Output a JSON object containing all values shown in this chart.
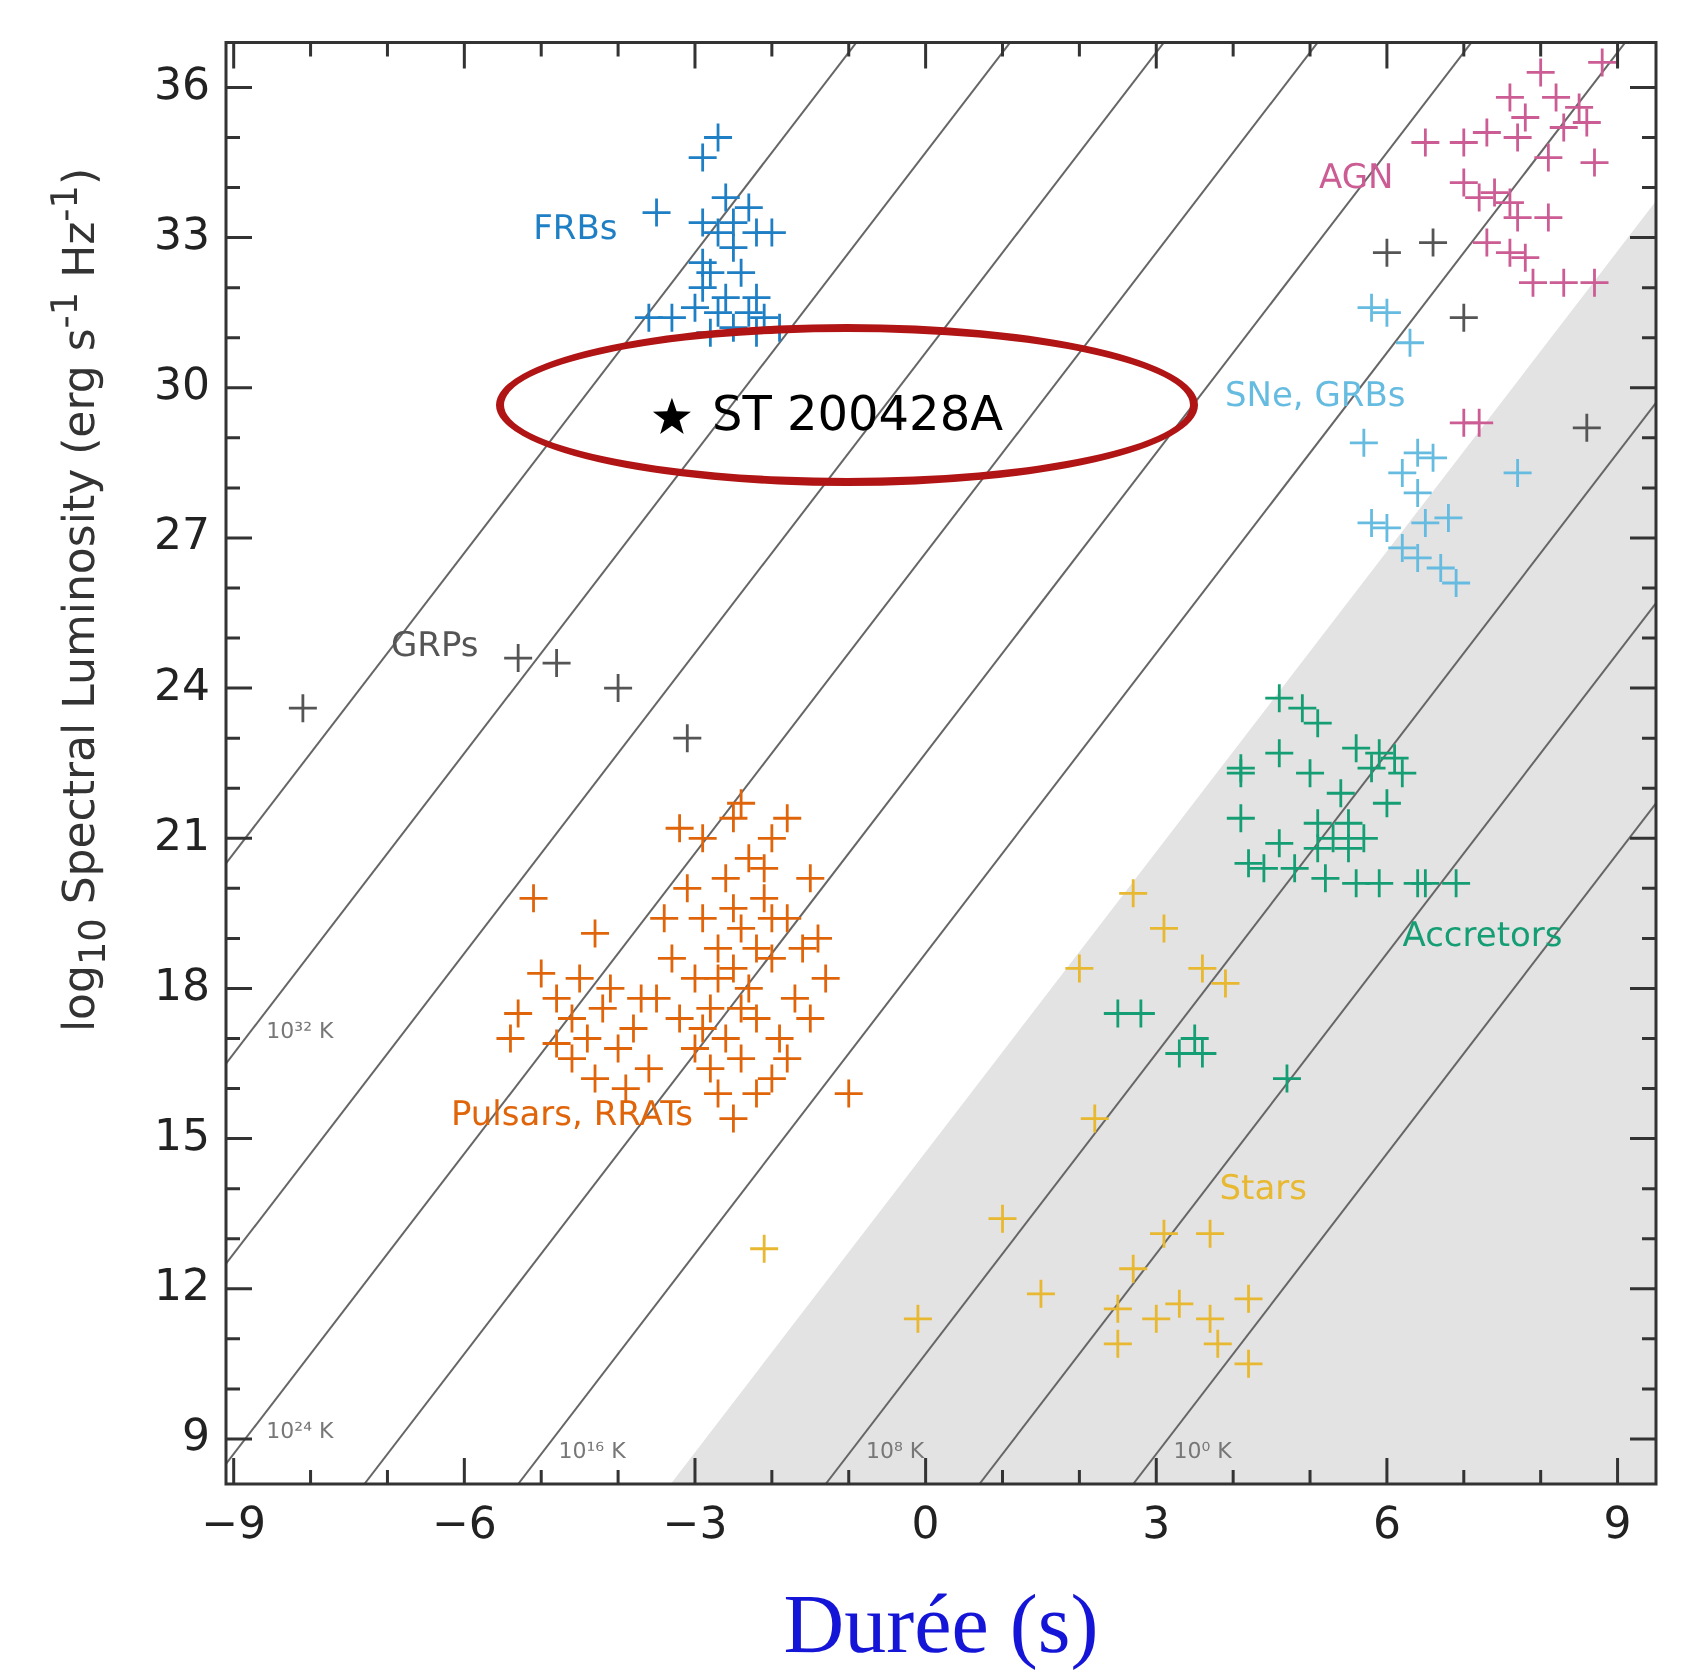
{
  "chart_data": {
    "type": "scatter",
    "xlabel": "Durée (s)",
    "ylabel": "log$_{10}$ Spectral Luminosity (erg s$^{-1}$ Hz$^{-1}$)",
    "xlim": [
      -9.1,
      9.5
    ],
    "ylim": [
      8.1,
      36.9
    ],
    "xticks": [
      {
        "value": -9,
        "label": "−9"
      },
      {
        "value": -8,
        "label": null
      },
      {
        "value": -7,
        "label": null
      },
      {
        "value": -6,
        "label": "−6"
      },
      {
        "value": -5,
        "label": null
      },
      {
        "value": -4,
        "label": null
      },
      {
        "value": -3,
        "label": "−3"
      },
      {
        "value": -2,
        "label": null
      },
      {
        "value": -1,
        "label": null
      },
      0,
      {
        "value": 1,
        "label": null
      },
      {
        "value": 2,
        "label": null
      },
      3,
      {
        "value": 4,
        "label": null
      },
      {
        "value": 5,
        "label": null
      },
      6,
      {
        "value": 7,
        "label": null
      },
      {
        "value": 8,
        "label": null
      },
      9
    ],
    "yticks": [
      9,
      {
        "value": 10,
        "label": null
      },
      {
        "value": 11,
        "label": null
      },
      12,
      {
        "value": 13,
        "label": null
      },
      {
        "value": 14,
        "label": null
      },
      15,
      {
        "value": 16,
        "label": null
      },
      {
        "value": 17,
        "label": null
      },
      18,
      {
        "value": 19,
        "label": null
      },
      {
        "value": 20,
        "label": null
      },
      21,
      {
        "value": 22,
        "label": null
      },
      {
        "value": 23,
        "label": null
      },
      24,
      {
        "value": 25,
        "label": null
      },
      {
        "value": 26,
        "label": null
      },
      27,
      {
        "value": 28,
        "label": null
      },
      {
        "value": 29,
        "label": null
      },
      30,
      {
        "value": 31,
        "label": null
      },
      {
        "value": 32,
        "label": null
      },
      33,
      {
        "value": 34,
        "label": null
      },
      {
        "value": 35,
        "label": null
      },
      36
    ],
    "series": [
      {
        "type": "area",
        "color": "#e3e3e3",
        "x": [
          -3.3,
          9.5
        ],
        "values": [
          8.1,
          33.7
        ]
      },
      {
        "type": "line",
        "color": "#666666",
        "x": [
          -9.1,
          -0.9
        ],
        "values": [
          20.5,
          36.9
        ]
      },
      {
        "type": "line",
        "name": "10³² K",
        "color": "#666666",
        "x": [
          -9.1,
          1.1
        ],
        "values": [
          16.5,
          36.9
        ]
      },
      {
        "type": "line",
        "color": "#666666",
        "x": [
          -9.1,
          3.1
        ],
        "values": [
          12.5,
          36.9
        ]
      },
      {
        "type": "line",
        "name": "10²⁴ K",
        "color": "#666666",
        "x": [
          -9.1,
          5.1
        ],
        "values": [
          8.5,
          36.9
        ]
      },
      {
        "type": "line",
        "color": "#666666",
        "x": [
          -7.3,
          7.1
        ],
        "values": [
          8.1,
          36.9
        ]
      },
      {
        "type": "line",
        "name": "10¹⁶ K",
        "color": "#666666",
        "x": [
          -5.3,
          9.1
        ],
        "values": [
          8.1,
          36.9
        ]
      },
      {
        "type": "line",
        "name": "10⁸ K",
        "color": "#666666",
        "x": [
          -1.3,
          9.5
        ],
        "values": [
          8.1,
          29.7
        ]
      },
      {
        "type": "line",
        "color": "#666666",
        "x": [
          0.7,
          9.5
        ],
        "values": [
          8.1,
          25.7
        ]
      },
      {
        "type": "line",
        "name": "10⁰ K",
        "color": "#666666",
        "x": [
          2.7,
          9.5
        ],
        "values": [
          8.1,
          21.7
        ]
      },
      {
        "name": "FRBs",
        "color": "#1f7fc4",
        "marker": "cross",
        "x": [
          -3.5,
          -2.6,
          -2.9,
          -2.7,
          -2.3,
          -2.9,
          -2.2,
          -2.5,
          -2.9,
          -2.8,
          -2.9,
          -2.6,
          -2.3,
          -2.1,
          -1.9,
          -3.6,
          -3.3,
          -2.8,
          -2.2,
          -2.0,
          -2.5,
          -2.7,
          -2.4,
          -2.2,
          -2.7,
          -2.5,
          -3.0
        ],
        "values": [
          33.5,
          33.8,
          34.6,
          35.0,
          33.6,
          33.3,
          33.1,
          32.8,
          32.5,
          32.3,
          32.0,
          31.8,
          31.5,
          31.4,
          31.2,
          31.4,
          31.4,
          31.1,
          31.1,
          33.1,
          33.3,
          33.1,
          32.3,
          31.8,
          31.5,
          31.2,
          31.6
        ]
      },
      {
        "name": "GRPs",
        "color": "#555555",
        "marker": "cross",
        "x": [
          -5.3,
          -4.8,
          -8.1,
          -4.0,
          -3.1,
          6.0,
          6.6,
          7.0,
          8.6
        ],
        "values": [
          24.6,
          24.5,
          23.6,
          24.0,
          23.0,
          32.7,
          32.9,
          31.4,
          29.2
        ]
      },
      {
        "name": "AGN",
        "color": "#cc5c94",
        "marker": "cross",
        "x": [
          6.5,
          7.6,
          8.0,
          8.2,
          8.5,
          7.8,
          8.6,
          8.3,
          7.3,
          8.8,
          7.0,
          7.7,
          8.1,
          8.7,
          7.0,
          7.4,
          7.6,
          7.7,
          8.1,
          7.2,
          7.3,
          7.6,
          7.8,
          7.9,
          8.3,
          8.7,
          7.0,
          7.2
        ],
        "values": [
          34.9,
          35.8,
          36.3,
          35.8,
          35.6,
          35.4,
          35.3,
          35.2,
          35.1,
          36.5,
          34.9,
          35.0,
          34.6,
          34.5,
          34.1,
          33.9,
          33.7,
          33.4,
          33.4,
          33.8,
          32.9,
          32.7,
          32.6,
          32.1,
          32.1,
          32.1,
          29.3,
          29.3
        ]
      },
      {
        "name": "SNe, GRBs",
        "color": "#66bbe0",
        "marker": "cross",
        "x": [
          5.7,
          6.4,
          6.3,
          5.8,
          6.4,
          6.6,
          6.2,
          6.0,
          7.7,
          5.8,
          6.0,
          6.5,
          6.8,
          6.2,
          6.4,
          6.7,
          6.9
        ],
        "values": [
          28.9,
          27.9,
          30.9,
          31.6,
          28.7,
          28.6,
          28.3,
          31.5,
          28.3,
          27.3,
          27.2,
          27.3,
          27.4,
          26.8,
          26.6,
          26.4,
          26.1
        ]
      },
      {
        "name": "Pulsars, RRATs",
        "color": "#e0650a",
        "marker": "cross",
        "x": [
          -4.6,
          -4.6,
          -5.1,
          -4.3,
          -5.0,
          -5.3,
          -5.4,
          -1.0,
          -2.5,
          -2.4,
          -1.8,
          -2.5,
          -2.3,
          -2.7,
          -2.4,
          -2.8,
          -2.2,
          -2.6,
          -2.0,
          -3.0,
          -2.9,
          -2.1,
          -2.6,
          -2.3,
          -3.1,
          -1.8,
          -1.6,
          -1.7,
          -1.9,
          -3.2,
          -3.3,
          -2.4,
          -2.8,
          -2.0,
          -3.0,
          -1.5,
          -1.4,
          -1.3,
          -2.9,
          -2.5,
          -2.0,
          -3.4,
          -3.5,
          -2.7,
          -2.2,
          -1.8,
          -1.5,
          -2.4,
          -2.7,
          -2.2,
          -2.0,
          -2.5,
          -2.9,
          -2.1,
          -3.2,
          -4.8,
          -4.4,
          -4.2,
          -4.0,
          -4.3,
          -3.9,
          -4.8,
          -4.5,
          -3.8,
          -4.1,
          -3.6,
          -3.7
        ],
        "values": [
          16.6,
          17.4,
          19.8,
          19.1,
          18.3,
          17.5,
          17.0,
          15.9,
          15.4,
          21.7,
          21.4,
          18.4,
          18.0,
          18.8,
          19.2,
          17.6,
          17.4,
          17.0,
          18.6,
          18.2,
          19.4,
          19.8,
          20.2,
          20.6,
          20.0,
          19.4,
          18.8,
          17.8,
          17.0,
          17.4,
          18.6,
          16.6,
          16.4,
          16.2,
          16.8,
          20.2,
          19.0,
          18.2,
          21.0,
          21.4,
          21.0,
          19.4,
          17.8,
          15.9,
          15.9,
          16.6,
          17.4,
          17.6,
          18.2,
          18.8,
          19.4,
          19.6,
          17.2,
          20.4,
          21.2,
          17.8,
          17.0,
          17.6,
          16.8,
          16.2,
          16.0,
          16.9,
          18.2,
          17.2,
          18.0,
          16.4,
          17.8
        ]
      },
      {
        "name": "Accretors",
        "color": "#159e74",
        "marker": "cross",
        "x": [
          6.9,
          6.2,
          5.1,
          4.6,
          5.6,
          5.9,
          6.1,
          4.1,
          4.1,
          5.0,
          5.8,
          4.9,
          5.4,
          6.0,
          4.1,
          5.1,
          5.5,
          5.3,
          5.7,
          4.6,
          5.1,
          5.5,
          4.2,
          4.4,
          4.8,
          5.2,
          5.6,
          5.9,
          6.4,
          6.5,
          4.6,
          2.5,
          2.8,
          3.5,
          3.6,
          3.3,
          4.7
        ],
        "values": [
          20.1,
          22.3,
          23.3,
          22.7,
          22.8,
          22.7,
          22.6,
          22.4,
          22.3,
          22.3,
          22.4,
          23.6,
          21.9,
          21.7,
          21.4,
          21.3,
          21.3,
          21.0,
          21.0,
          20.9,
          20.8,
          20.8,
          20.5,
          20.4,
          20.4,
          20.2,
          20.1,
          20.1,
          20.1,
          20.1,
          23.8,
          17.5,
          17.5,
          17.0,
          16.7,
          16.7,
          16.2
        ]
      },
      {
        "name": "Stars",
        "color": "#e8b830",
        "marker": "cross",
        "x": [
          3.7,
          2.5,
          3.6,
          3.9,
          2.0,
          2.2,
          1.0,
          3.1,
          2.7,
          1.5,
          2.7,
          3.1,
          3.0,
          3.3,
          3.7,
          4.2,
          3.8,
          2.5,
          4.2,
          -0.1,
          -2.1
        ],
        "values": [
          13.1,
          11.6,
          18.4,
          18.1,
          18.4,
          15.4,
          13.4,
          13.1,
          19.9,
          11.9,
          12.4,
          19.2,
          11.4,
          11.7,
          11.4,
          11.8,
          10.9,
          10.9,
          10.5,
          11.4,
          12.8
        ]
      },
      {
        "name": "ST 200428A",
        "color": "#000000",
        "marker": "star",
        "x": [
          -3.3
        ],
        "values": [
          29.4
        ]
      }
    ]
  }
}
